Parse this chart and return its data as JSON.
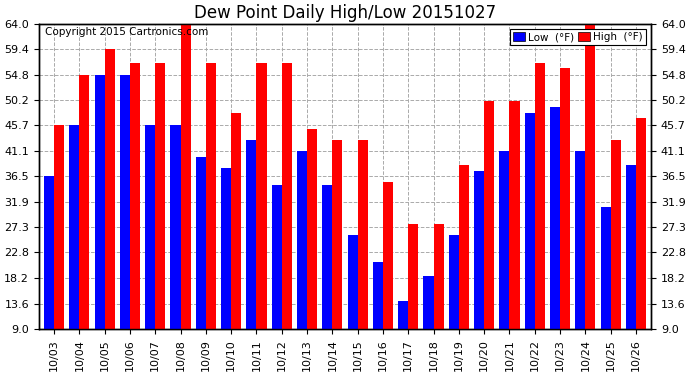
{
  "title": "Dew Point Daily High/Low 20151027",
  "copyright": "Copyright 2015 Cartronics.com",
  "dates": [
    "10/03",
    "10/04",
    "10/05",
    "10/06",
    "10/07",
    "10/08",
    "10/09",
    "10/10",
    "10/11",
    "10/12",
    "10/13",
    "10/14",
    "10/15",
    "10/16",
    "10/17",
    "10/18",
    "10/19",
    "10/20",
    "10/21",
    "10/22",
    "10/23",
    "10/24",
    "10/25",
    "10/26"
  ],
  "low_values": [
    36.5,
    45.7,
    54.8,
    54.8,
    45.7,
    45.7,
    40.0,
    38.0,
    43.0,
    35.0,
    41.0,
    35.0,
    26.0,
    21.0,
    14.0,
    18.5,
    26.0,
    37.5,
    41.0,
    48.0,
    49.0,
    41.0,
    31.0,
    38.5
  ],
  "high_values": [
    45.7,
    54.8,
    59.4,
    57.0,
    57.0,
    64.0,
    57.0,
    48.0,
    57.0,
    57.0,
    45.0,
    43.0,
    43.0,
    35.5,
    28.0,
    28.0,
    38.5,
    50.0,
    50.0,
    57.0,
    56.0,
    64.0,
    43.0,
    47.0
  ],
  "low_color": "#0000ff",
  "high_color": "#ff0000",
  "bg_color": "#ffffff",
  "plot_bg_color": "#ffffff",
  "grid_color": "#aaaaaa",
  "ymin": 9.0,
  "ymax": 64.0,
  "yticks": [
    9.0,
    13.6,
    18.2,
    22.8,
    27.3,
    31.9,
    36.5,
    41.1,
    45.7,
    50.2,
    54.8,
    59.4,
    64.0
  ],
  "title_fontsize": 12,
  "copyright_fontsize": 7.5,
  "tick_fontsize": 8,
  "legend_low_label": "Low  (°F)",
  "legend_high_label": "High  (°F)"
}
